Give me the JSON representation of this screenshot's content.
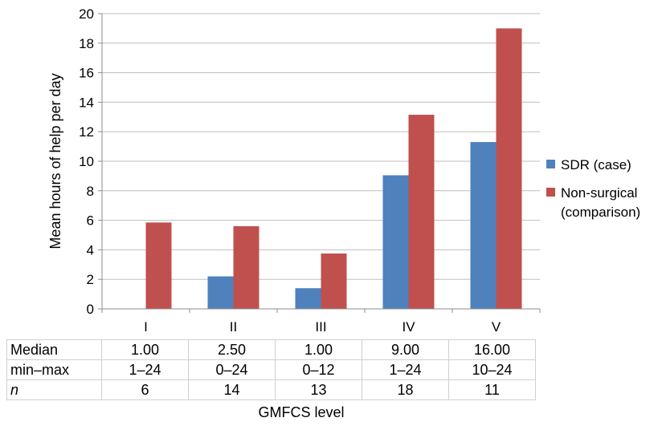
{
  "chart_data": {
    "type": "bar",
    "title": "",
    "xlabel": "GMFCS level",
    "ylabel": "Mean hours of help per day",
    "categories": [
      "I",
      "II",
      "III",
      "IV",
      "V"
    ],
    "series": [
      {
        "name": "SDR (case)",
        "color": "#4F81BD",
        "values": [
          0,
          2.2,
          1.4,
          9.05,
          11.3
        ]
      },
      {
        "name": "Non-surgical (comparison)",
        "color": "#C0504D",
        "values": [
          5.85,
          5.6,
          3.75,
          13.15,
          19.0
        ]
      }
    ],
    "ylim": [
      0,
      20
    ],
    "yticks": [
      0,
      2,
      4,
      6,
      8,
      10,
      12,
      14,
      16,
      18,
      20
    ],
    "grid": true,
    "legend": "right",
    "legend_lines": [
      [
        "SDR (case)"
      ],
      [
        "Non-surgical",
        "(comparison)"
      ]
    ]
  },
  "table": {
    "rows": [
      {
        "label": "Median",
        "italic": false,
        "values": [
          "1.00",
          "2.50",
          "1.00",
          "9.00",
          "16.00"
        ]
      },
      {
        "label": "min–max",
        "italic": false,
        "values": [
          "1–24",
          "0–24",
          "0–12",
          "1–24",
          "10–24"
        ]
      },
      {
        "label": "n",
        "italic": true,
        "values": [
          "6",
          "14",
          "13",
          "18",
          "11"
        ]
      }
    ]
  }
}
